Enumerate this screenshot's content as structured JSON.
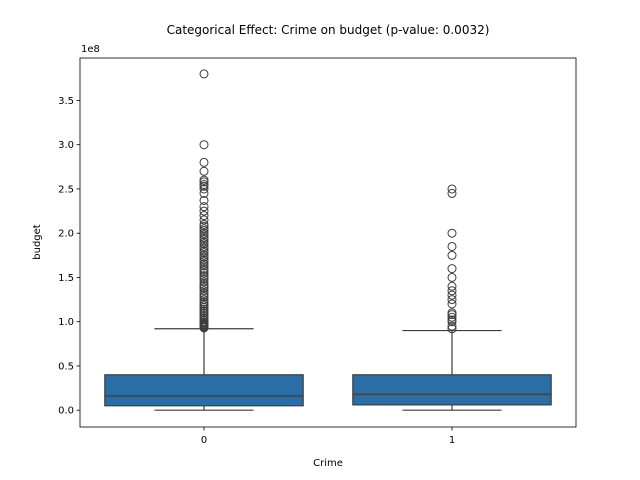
{
  "chart_data": {
    "type": "box",
    "title": "Categorical Effect: Crime on budget (p-value: 0.0032)",
    "xlabel": "Crime",
    "ylabel": "budget",
    "offset_text": "1e8",
    "categories": [
      "0",
      "1"
    ],
    "ylim": [
      -0.19,
      3.98
    ],
    "yticks": [
      0.0,
      0.5,
      1.0,
      1.5,
      2.0,
      2.5,
      3.0,
      3.5
    ],
    "ytick_labels": [
      "0.0",
      "0.5",
      "1.0",
      "1.5",
      "2.0",
      "2.5",
      "3.0",
      "3.5"
    ],
    "grid": false,
    "box_color": "#2b6ea6",
    "line_color": "#3d3d3d",
    "boxes": [
      {
        "category": "0",
        "whisker_low": 0.0,
        "q1": 0.05,
        "median": 0.16,
        "q3": 0.4,
        "whisker_high": 0.92,
        "outliers": [
          0.93,
          0.94,
          0.95,
          0.96,
          0.97,
          0.98,
          0.99,
          1.0,
          1.02,
          1.04,
          1.06,
          1.08,
          1.1,
          1.12,
          1.14,
          1.16,
          1.18,
          1.2,
          1.22,
          1.25,
          1.28,
          1.3,
          1.32,
          1.35,
          1.38,
          1.4,
          1.42,
          1.45,
          1.48,
          1.5,
          1.52,
          1.55,
          1.58,
          1.6,
          1.63,
          1.65,
          1.68,
          1.7,
          1.73,
          1.75,
          1.78,
          1.8,
          1.83,
          1.85,
          1.88,
          1.9,
          1.93,
          1.95,
          1.98,
          2.0,
          2.03,
          2.05,
          2.08,
          2.1,
          2.15,
          2.2,
          2.25,
          2.3,
          2.37,
          2.45,
          2.5,
          2.53,
          2.55,
          2.58,
          2.6,
          2.7,
          2.8,
          3.0,
          3.8
        ]
      },
      {
        "category": "1",
        "whisker_low": 0.0,
        "q1": 0.06,
        "median": 0.18,
        "q3": 0.4,
        "whisker_high": 0.9,
        "outliers": [
          0.92,
          0.95,
          1.0,
          1.02,
          1.05,
          1.08,
          1.1,
          1.2,
          1.25,
          1.3,
          1.35,
          1.4,
          1.5,
          1.6,
          1.75,
          1.85,
          2.0,
          2.45,
          2.5
        ]
      }
    ]
  }
}
